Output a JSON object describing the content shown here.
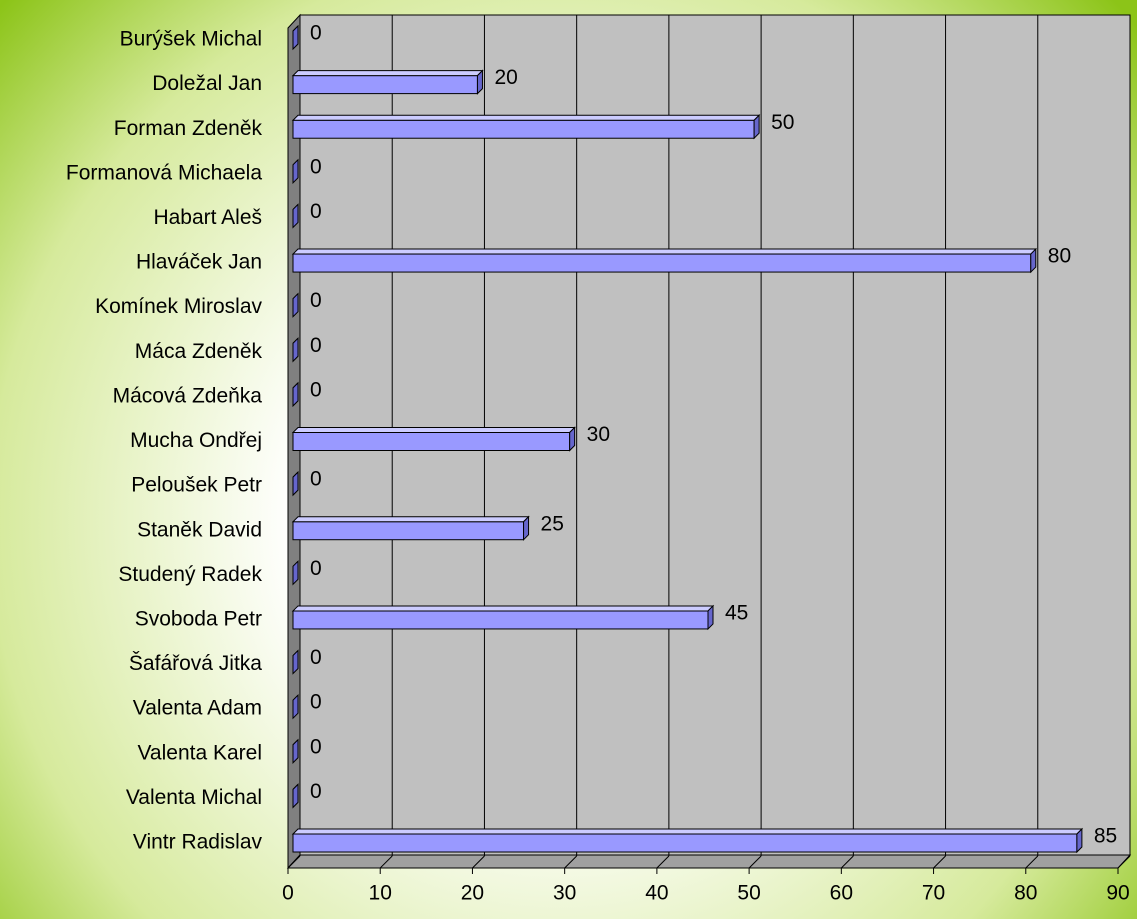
{
  "chart_data": {
    "type": "bar",
    "orientation": "horizontal",
    "categories": [
      "Burýšek Michal",
      "Doležal Jan",
      "Forman Zdeněk",
      "Formanová Michaela",
      "Habart Aleš",
      "Hlaváček Jan",
      "Komínek Miroslav",
      "Máca Zdeněk",
      "Mácová Zdeňka",
      "Mucha Ondřej",
      "Peloušek Petr",
      "Staněk David",
      "Studený  Radek",
      "Svoboda Petr",
      "Šafářová Jitka",
      "Valenta Adam",
      "Valenta Karel",
      "Valenta Michal",
      "Vintr Radislav"
    ],
    "values": [
      0,
      20,
      50,
      0,
      0,
      80,
      0,
      0,
      0,
      30,
      0,
      25,
      0,
      45,
      0,
      0,
      0,
      0,
      85
    ],
    "color": "#9999ff",
    "xlim": [
      0,
      90
    ],
    "xticks": [
      0,
      10,
      20,
      30,
      40,
      50,
      60,
      70,
      80,
      90
    ],
    "grid": true
  }
}
